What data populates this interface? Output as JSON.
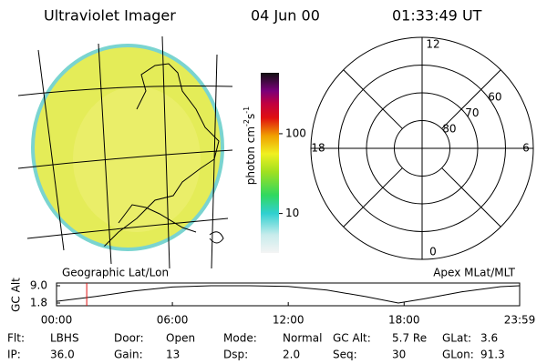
{
  "header": {
    "title": "Ultraviolet Imager",
    "date": "04 Jun 00",
    "time": "01:33:49 UT"
  },
  "colorbar": {
    "label": [
      "photon cm",
      "-2",
      "s",
      "-1"
    ],
    "log": true,
    "lim": [
      3.2,
      580
    ],
    "ticks": [
      10,
      100
    ]
  },
  "polar": {
    "rlim": [
      90,
      50
    ],
    "rticks": [
      80,
      70,
      60
    ],
    "mlt_ticks": [
      12,
      6,
      0,
      18
    ]
  },
  "orbit_plot": {
    "type": "line",
    "left_title": "Geographic Lat/Lon",
    "right_title": "Apex MLat/MLT",
    "ylabel": "GC Alt",
    "x": [
      0,
      2,
      4,
      6,
      8,
      10,
      12,
      14,
      16,
      17.7,
      19,
      21,
      23,
      23.983
    ],
    "values": [
      2.5,
      4.5,
      6.8,
      8.5,
      9.0,
      9.0,
      8.7,
      7.2,
      4.5,
      1.8,
      3.5,
      6.5,
      8.6,
      9.0
    ],
    "color": "#000000",
    "current_time": 1.564,
    "marker_color": "#e01010",
    "xlim": [
      0,
      23.983
    ],
    "ylim": [
      1.8,
      9.0
    ],
    "xticks": [
      {
        "value": 0,
        "label": "00:00"
      },
      {
        "value": 6,
        "label": "06:00"
      },
      {
        "value": 12,
        "label": "12:00"
      },
      {
        "value": 18,
        "label": "18:00"
      },
      {
        "value": 23.983,
        "label": "23:59"
      }
    ],
    "yticks": [
      {
        "value": 9,
        "label": "9.0"
      },
      1.8
    ]
  },
  "info": {
    "rows": [
      [
        [
          "Flt:",
          "LBHS"
        ],
        [
          "Door:",
          "Open"
        ],
        [
          "Mode:",
          "Normal"
        ],
        [
          "GC Alt:",
          "5.7 Re"
        ],
        [
          "GLat:",
          "3.6"
        ]
      ],
      [
        [
          "IP:",
          "36.0"
        ],
        [
          "Gain:",
          "13"
        ],
        [
          "Dsp:",
          "2.0"
        ],
        [
          "Seq:",
          "30"
        ],
        [
          "GLon:",
          "91.3"
        ]
      ]
    ]
  }
}
